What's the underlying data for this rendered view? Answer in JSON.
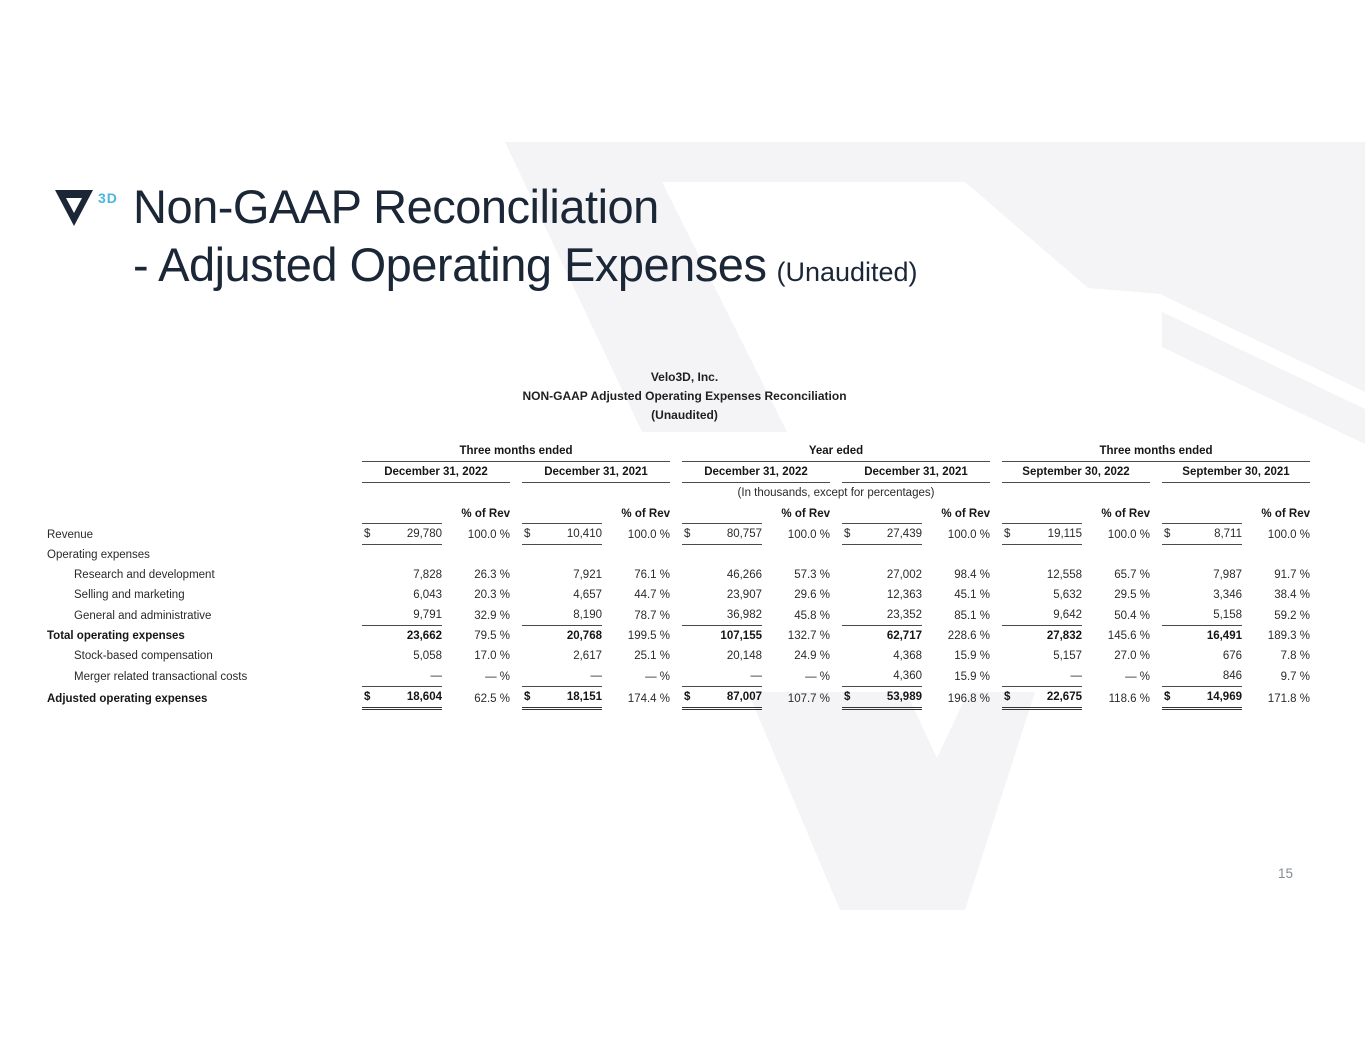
{
  "slide": {
    "logo": {
      "mark": "velo3d-nabla-icon",
      "suffix": "3D"
    },
    "title_line1": "Non-GAAP Reconciliation",
    "title_line2": "- Adjusted Operating Expenses",
    "title_suffix": "(Unaudited)",
    "page_number": "15",
    "colors": {
      "accent_navy": "#1b2737",
      "accent_blue": "#49b8dd",
      "watermark_gray": "#f4f4f6",
      "table_rule": "#4a4a4a",
      "page_number_gray": "#848a96"
    }
  },
  "table": {
    "titles": [
      "Velo3D, Inc.",
      "NON-GAAP Adjusted Operating Expenses Reconciliation",
      "(Unaudited)"
    ],
    "note": "(In thousands, except for percentages)",
    "pct_header": "% of Rev",
    "groups": [
      {
        "title": "Three months ended",
        "periods": [
          "December 31, 2022",
          "December 31, 2021"
        ]
      },
      {
        "title": "Year eded",
        "periods": [
          "December 31, 2022",
          "December 31, 2021"
        ]
      },
      {
        "title": "Three months ended",
        "periods": [
          "September 30, 2022",
          "September 30, 2021"
        ]
      }
    ],
    "rows": [
      {
        "label": "Revenue",
        "indent": 0,
        "bold": false,
        "dollar": true,
        "ul": "single",
        "cells": [
          [
            "29,780",
            "100.0 %"
          ],
          [
            "10,410",
            "100.0 %"
          ],
          [
            "80,757",
            "100.0 %"
          ],
          [
            "27,439",
            "100.0 %"
          ],
          [
            "19,115",
            "100.0 %"
          ],
          [
            "8,711",
            "100.0 %"
          ]
        ]
      },
      {
        "label": "Operating expenses",
        "indent": 0,
        "bold": false,
        "dollar": false,
        "ul": "none",
        "cells": null
      },
      {
        "label": "Research and development",
        "indent": 1,
        "bold": false,
        "dollar": false,
        "ul": "none",
        "cells": [
          [
            "7,828",
            "26.3 %"
          ],
          [
            "7,921",
            "76.1 %"
          ],
          [
            "46,266",
            "57.3 %"
          ],
          [
            "27,002",
            "98.4 %"
          ],
          [
            "12,558",
            "65.7 %"
          ],
          [
            "7,987",
            "91.7 %"
          ]
        ]
      },
      {
        "label": "Selling and marketing",
        "indent": 1,
        "bold": false,
        "dollar": false,
        "ul": "none",
        "cells": [
          [
            "6,043",
            "20.3 %"
          ],
          [
            "4,657",
            "44.7 %"
          ],
          [
            "23,907",
            "29.6 %"
          ],
          [
            "12,363",
            "45.1 %"
          ],
          [
            "5,632",
            "29.5 %"
          ],
          [
            "3,346",
            "38.4 %"
          ]
        ]
      },
      {
        "label": "General and administrative",
        "indent": 1,
        "bold": false,
        "dollar": false,
        "ul": "single",
        "cells": [
          [
            "9,791",
            "32.9 %"
          ],
          [
            "8,190",
            "78.7 %"
          ],
          [
            "36,982",
            "45.8 %"
          ],
          [
            "23,352",
            "85.1 %"
          ],
          [
            "9,642",
            "50.4 %"
          ],
          [
            "5,158",
            "59.2 %"
          ]
        ]
      },
      {
        "label": "Total operating expenses",
        "indent": 0,
        "bold": true,
        "dollar": false,
        "ul": "none",
        "cells": [
          [
            "23,662",
            "79.5 %"
          ],
          [
            "20,768",
            "199.5 %"
          ],
          [
            "107,155",
            "132.7 %"
          ],
          [
            "62,717",
            "228.6 %"
          ],
          [
            "27,832",
            "145.6 %"
          ],
          [
            "16,491",
            "189.3 %"
          ]
        ]
      },
      {
        "label": "Stock-based compensation",
        "indent": 1,
        "bold": false,
        "dollar": false,
        "ul": "none",
        "cells": [
          [
            "5,058",
            "17.0 %"
          ],
          [
            "2,617",
            "25.1 %"
          ],
          [
            "20,148",
            "24.9 %"
          ],
          [
            "4,368",
            "15.9 %"
          ],
          [
            "5,157",
            "27.0 %"
          ],
          [
            "676",
            "7.8 %"
          ]
        ]
      },
      {
        "label": "Merger related transactional costs",
        "indent": 1,
        "bold": false,
        "dollar": false,
        "ul": "single",
        "cells": [
          [
            "—",
            "— %"
          ],
          [
            "—",
            "— %"
          ],
          [
            "—",
            "— %"
          ],
          [
            "4,360",
            "15.9 %"
          ],
          [
            "—",
            "— %"
          ],
          [
            "846",
            "9.7 %"
          ]
        ]
      },
      {
        "label": "Adjusted operating expenses",
        "indent": 0,
        "bold": true,
        "dollar": true,
        "ul": "double",
        "cells": [
          [
            "18,604",
            "62.5 %"
          ],
          [
            "18,151",
            "174.4 %"
          ],
          [
            "87,007",
            "107.7 %"
          ],
          [
            "53,989",
            "196.8 %"
          ],
          [
            "22,675",
            "118.6 %"
          ],
          [
            "14,969",
            "171.8 %"
          ]
        ]
      }
    ]
  }
}
